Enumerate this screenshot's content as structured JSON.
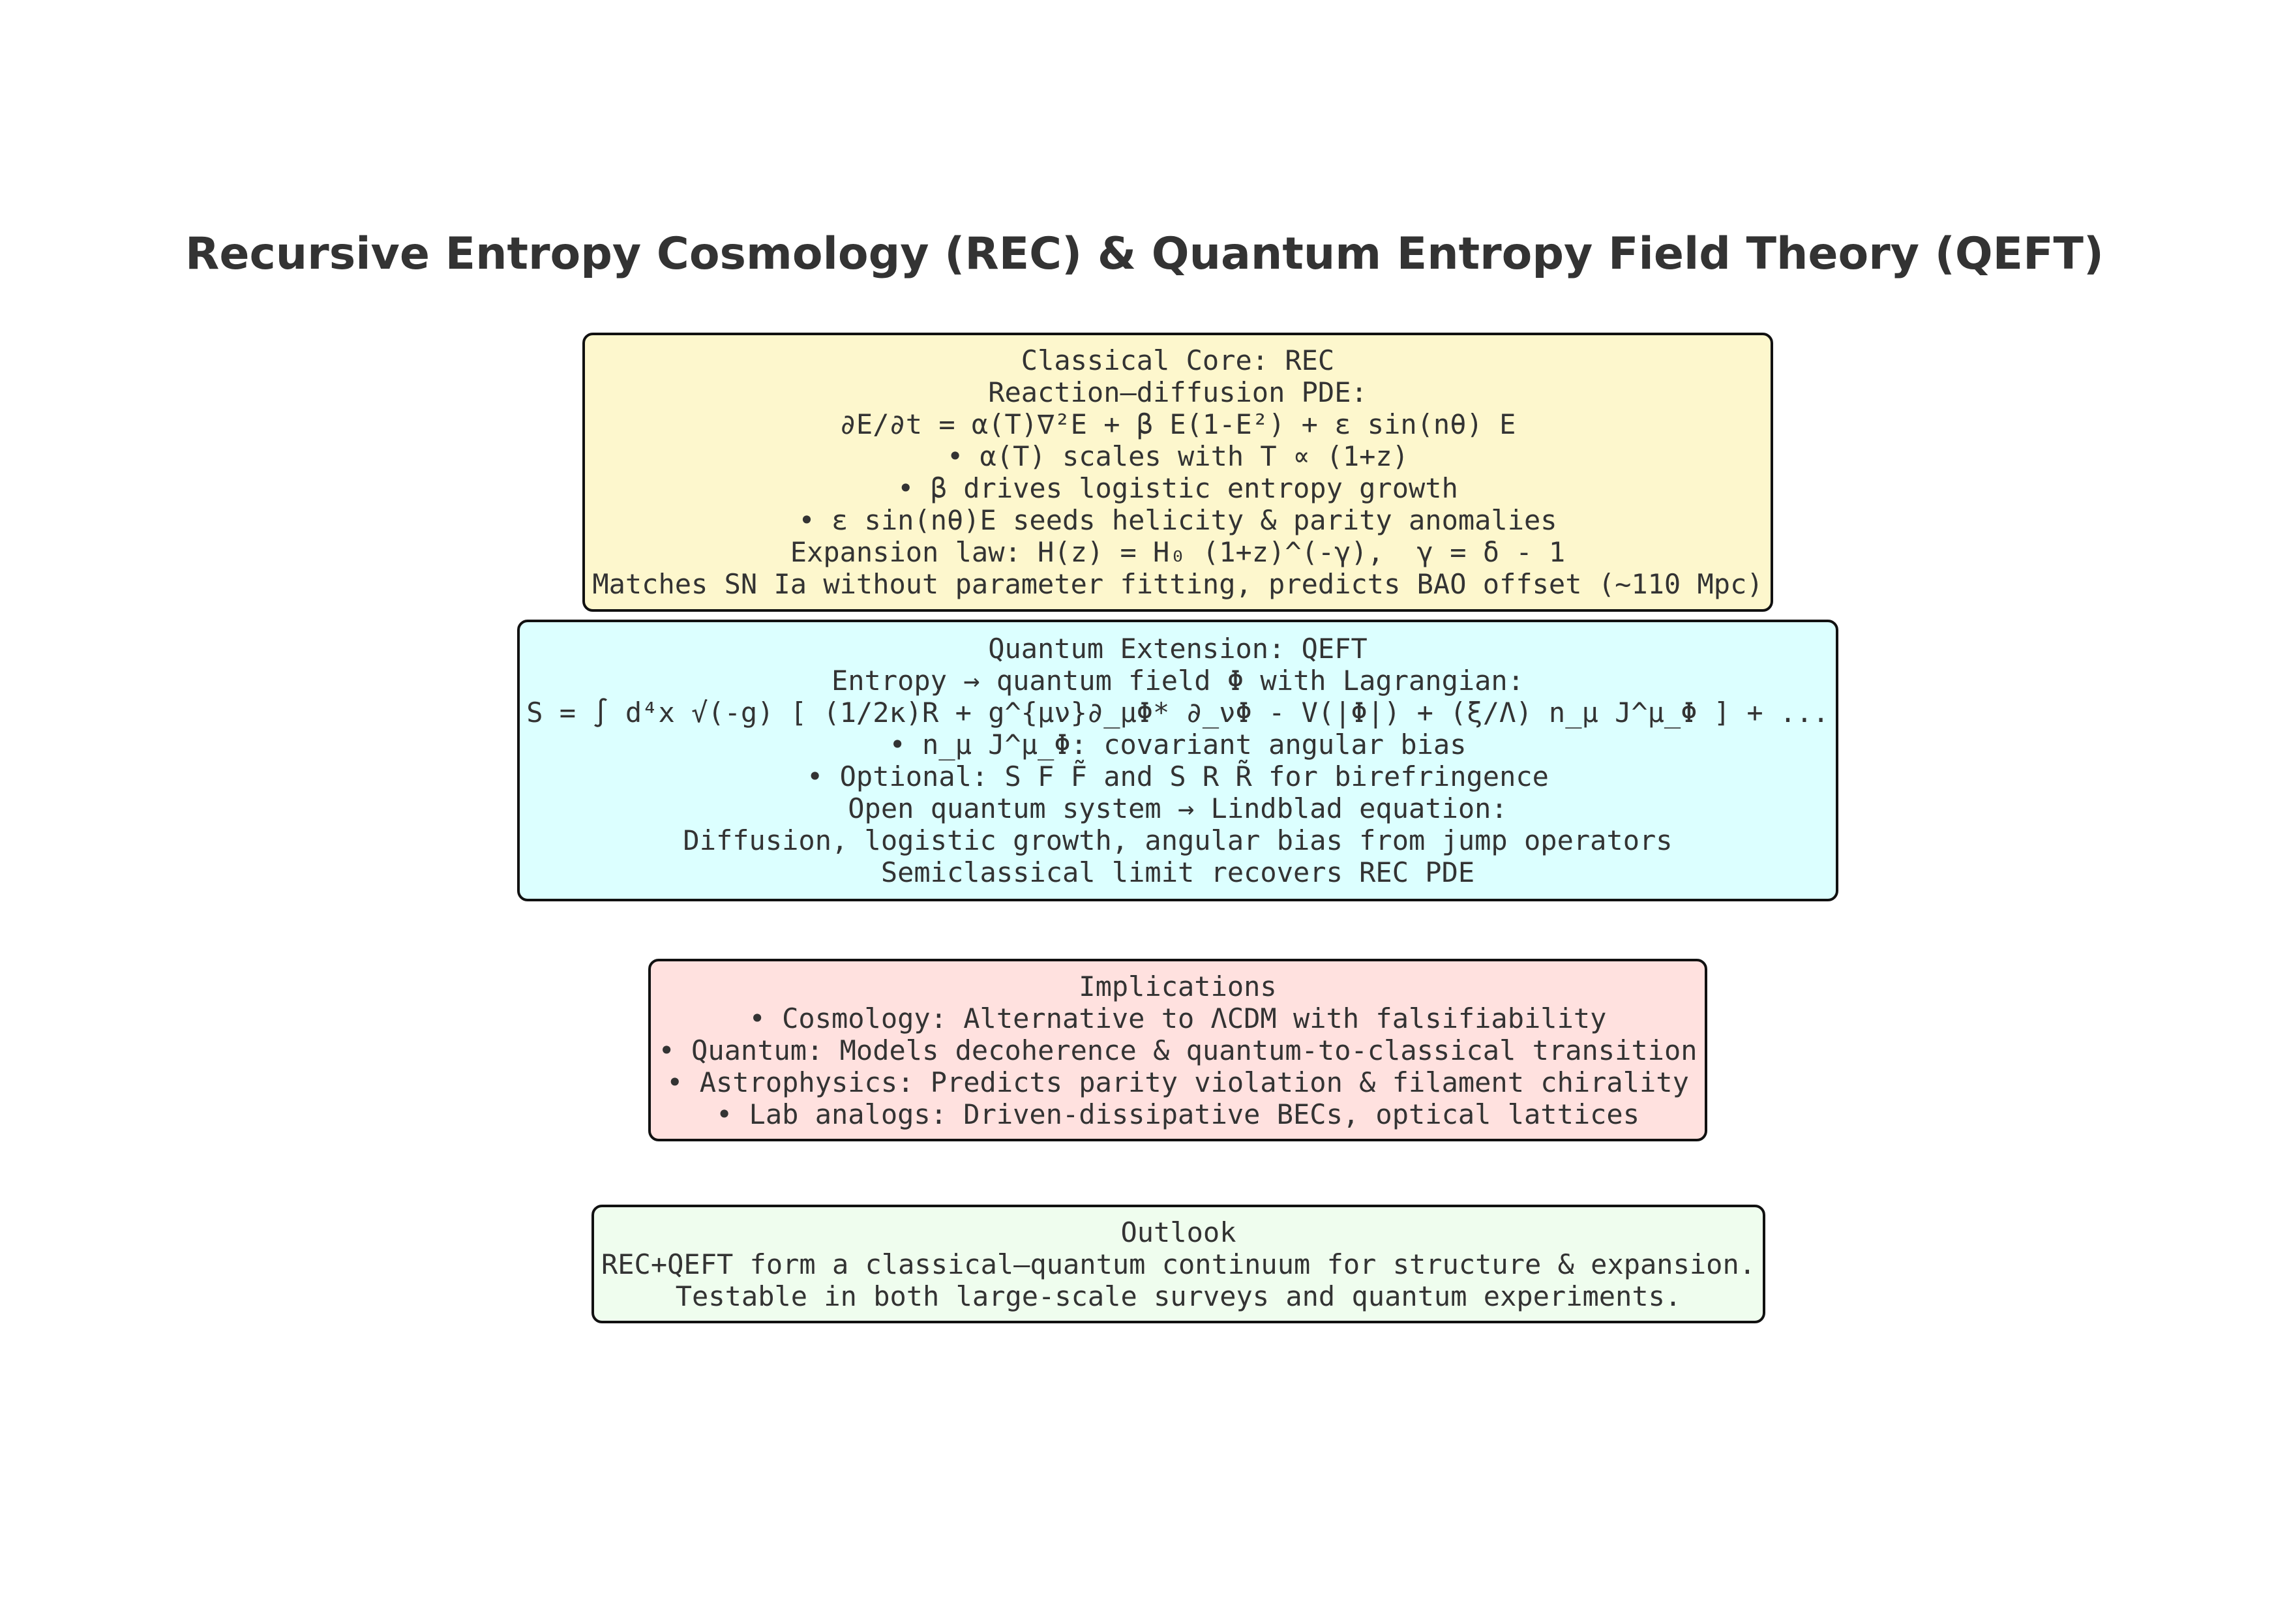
{
  "title": "Recursive Entropy Cosmology (REC) & Quantum Entropy Field Theory (QEFT)",
  "boxes": {
    "rec": {
      "fill": "#fdf7cd",
      "lines": [
        "Classical Core: REC",
        "Reaction–diffusion PDE:",
        "∂E/∂t = α(T)∇²E + β E(1-E²) + ε sin(nθ) E",
        "• α(T) scales with T ∝ (1+z)",
        "• β drives logistic entropy growth",
        "• ε sin(nθ)E seeds helicity & parity anomalies",
        "Expansion law: H(z) = H₀ (1+z)^(-γ),  γ = δ - 1",
        "Matches SN Ia without parameter fitting, predicts BAO offset (~110 Mpc)"
      ]
    },
    "qeft": {
      "fill": "#dcffff",
      "lines": [
        "Quantum Extension: QEFT",
        "Entropy → quantum field Φ with Lagrangian:",
        "S = ∫ d⁴x √(-g) [ (1/2κ)R + g^{μν}∂_μΦ* ∂_νΦ - V(|Φ|) + (ξ/Λ) n_μ J^μ_Φ ] + ...",
        "• n_μ J^μ_Φ: covariant angular bias",
        "• Optional: S F F̃ and S R R̃ for birefringence",
        "Open quantum system → Lindblad equation:",
        "Diffusion, logistic growth, angular bias from jump operators",
        "Semiclassical limit recovers REC PDE"
      ]
    },
    "implications": {
      "fill": "#ffe1df",
      "lines": [
        "Implications",
        "• Cosmology: Alternative to ΛCDM with falsifiability",
        "• Quantum: Models decoherence & quantum-to-classical transition",
        "• Astrophysics: Predicts parity violation & filament chirality",
        "• Lab analogs: Driven-dissipative BECs, optical lattices"
      ]
    },
    "outlook": {
      "fill": "#effdee",
      "lines": [
        "Outlook",
        "REC+QEFT form a classical–quantum continuum for structure & expansion.",
        "Testable in both large-scale surveys and quantum experiments."
      ]
    }
  }
}
